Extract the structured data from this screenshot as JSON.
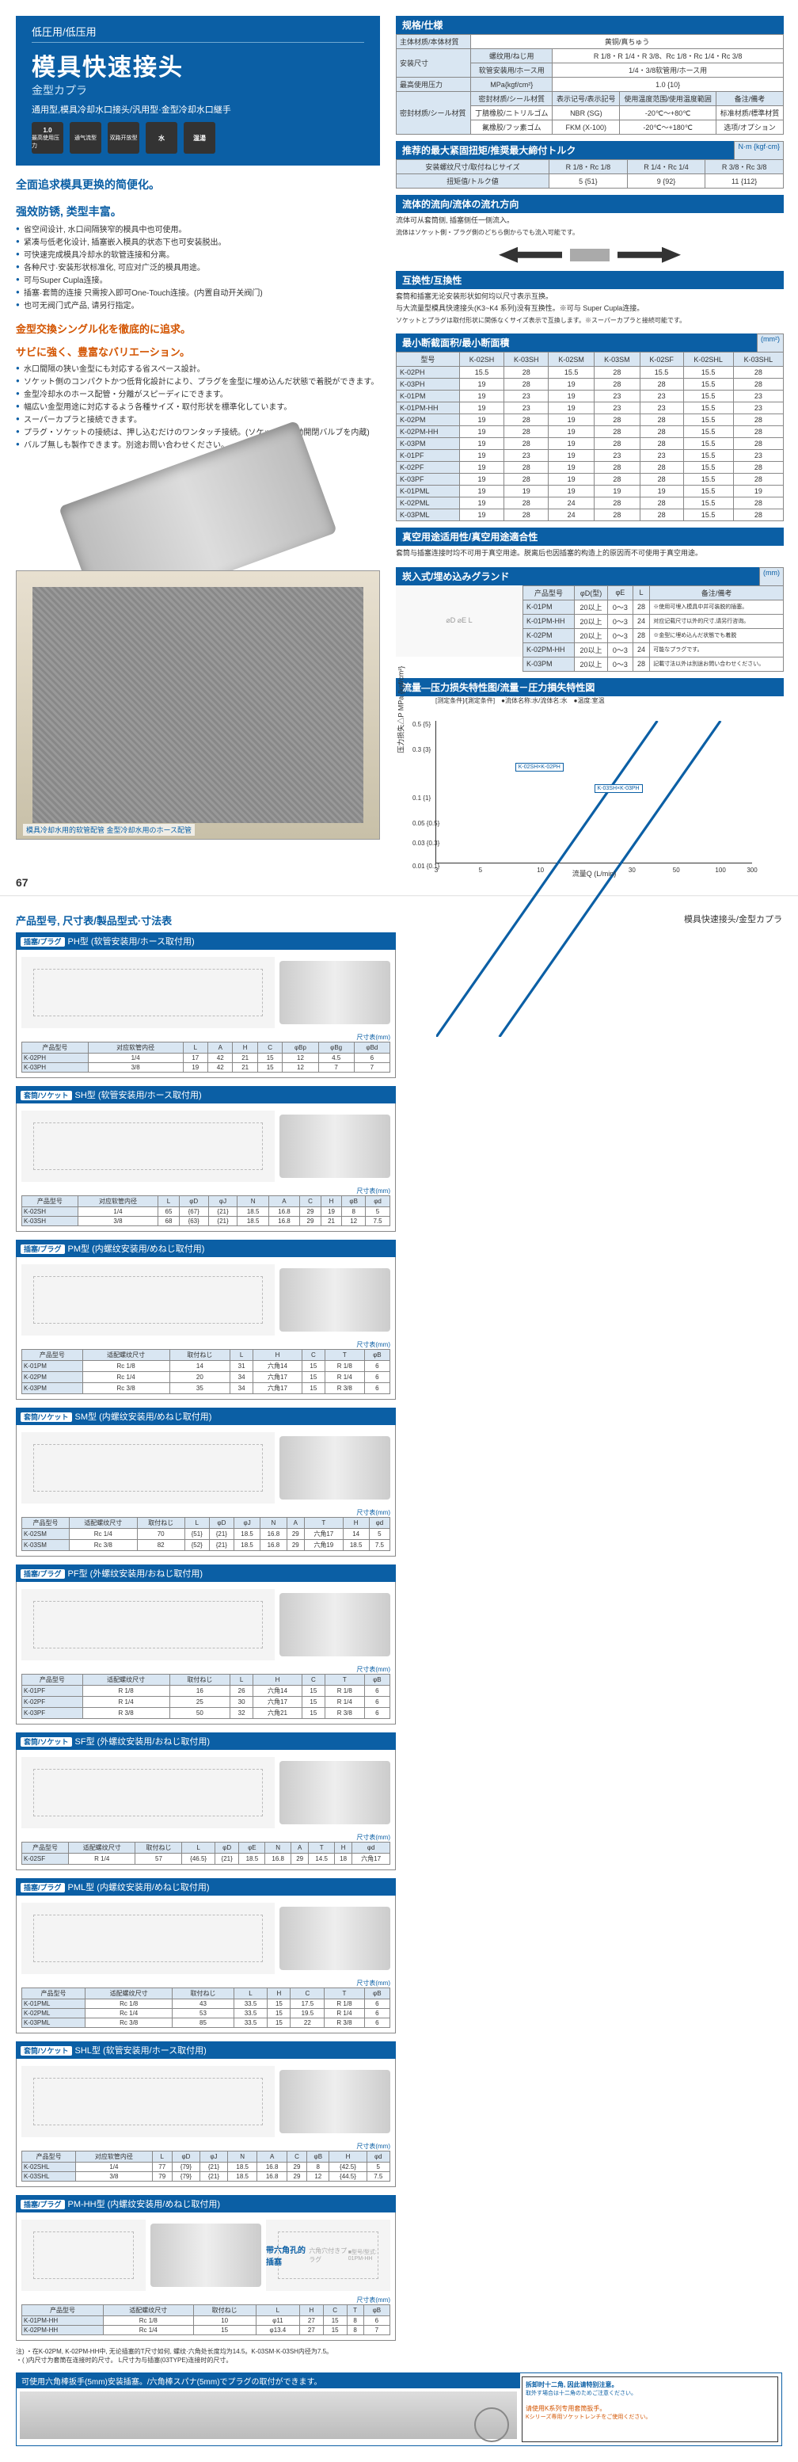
{
  "hero": {
    "sub": "低圧用/低压用",
    "title": "模具快速接头",
    "metal": "金型カプラ",
    "desc": "通用型,模具冷却水口接头/汎用型·金型冷却水口継手",
    "icon_labels": [
      "最高使用压力",
      "通气流型",
      "双路开放型",
      "适用流体",
      "适用流体"
    ],
    "icon_vals": [
      "1.0",
      "",
      "",
      "水",
      "温湯"
    ],
    "feat_title1": "全面追求模具更换的简便化。",
    "feat_title2": "强效防锈, 类型丰富。",
    "feats": [
      "省空间设计, 水口间隔狭窄的模具中也可使用。",
      "紧凑与低老化设计, 插塞嵌入模具的状态下也可安装脱出。",
      "可快速完成模具冷却水的软管连接和分离。",
      "各种尺寸·安装形状标准化, 可应对广泛的模具用途。",
      "可与Super Cupla连接。",
      "插塞·套筒的连接 只需按入即可One-Touch连接。(内置自动开关阀门)",
      "也可无阀门式产品, 请另行指定。"
    ],
    "orange1": "金型交換シングル化を徹底的に追求。",
    "orange2": "サビに強く、豊富なバリエーション。",
    "orange_feats": [
      "水口間隔の狭い金型にも対応する省スペース設計。",
      "ソケット側のコンパクトかつ低背化設計により、プラグを金型に埋め込んだ状態で着脱ができます。",
      "金型冷却水のホース配管・分離がスピーディにできます。",
      "幅広い金型用途に対応するよう各種サイズ・取付形状を標準化しています。",
      "スーパーカプラと接続できます。",
      "プラグ・ソケットの接続は、押し込むだけのワンタッチ接続。(ソケットは自動開閉バルブを内蔵)",
      "バルブ無しも製作できます。別途お問い合わせください。"
    ],
    "mach_caption": "模具冷却水用的软管配管 金型冷却水用のホース配管"
  },
  "pgnum": "67",
  "spec": {
    "hdr": "规格/仕様",
    "rows": [
      [
        "主体材质/本体材質",
        "黄铜/真ちゅう",
        "",
        "",
        ""
      ],
      [
        "安装尺寸",
        "螺纹用/ねじ用",
        "R 1/8・R 1/4・R 3/8、Rc 1/8・Rc 1/4・Rc 3/8",
        "",
        ""
      ],
      [
        "取付サイズ",
        "软管安装用/ホース用",
        "1/4・3/8软管用/ホース用",
        "",
        ""
      ],
      [
        "最高使用压力",
        "MPa{kgf/cm²}",
        "1.0 {10}",
        "",
        ""
      ]
    ],
    "seal_hdr": [
      "密封材质/シール材質",
      "密封材质/シール材質",
      "表示记号/表示記号",
      "使用温度范围/使用温度範囲",
      "备注/備考"
    ],
    "seal_rows": [
      [
        "丁腈橡胶/ニトリルゴム",
        "NBR (SG)",
        "-20℃～+80℃",
        "标准材质/標準材質"
      ],
      [
        "氟橡胶/フッ素ゴム",
        "FKM (X-100)",
        "-20℃～+180℃",
        "选项/オプション"
      ]
    ]
  },
  "torque": {
    "hdr": "推荐的最大紧固扭矩/推奨最大締付トルク",
    "unit": "N·m {kgf·cm}",
    "cols": [
      "安装螺纹尺寸/取付ねじサイズ",
      "R 1/8・Rc 1/8",
      "R 1/4・Rc 1/4",
      "R 3/8・Rc 3/8"
    ],
    "row": [
      "扭矩值/トルク値",
      "5 {51}",
      "9 {92}",
      "11 {112}"
    ]
  },
  "flowdir": {
    "hdr": "流体的流向/流体の流れ方向",
    "text": "流体可从套筒侧, 插塞侧任一侧流入。",
    "jp": "流体はソケット側・プラグ側のどちら側からでも流入可能です。"
  },
  "compat": {
    "hdr": "互换性/互換性",
    "text1": "套筒和插塞无论安装形状如何均以尺寸表示互换。",
    "text2": "与大流量型模具快速接头(K3~K4 系列)没有互换性。※可与 Super Cupla连接。",
    "jp": "ソケットとプラグは取付形状に関係なくサイズ表示で互換します。※スーパーカプラと接続可能です。"
  },
  "area": {
    "hdr": "最小断截面积/最小断面積",
    "unit": "(mm²)",
    "cols": [
      "型号",
      "K-02SH",
      "K-03SH",
      "K-02SM",
      "K-03SM",
      "K-02SF",
      "K-02SHL",
      "K-03SHL"
    ],
    "rows": [
      [
        "K-02PH",
        "15.5",
        "28",
        "15.5",
        "28",
        "15.5",
        "15.5",
        "28"
      ],
      [
        "K-03PH",
        "19",
        "28",
        "19",
        "28",
        "28",
        "15.5",
        "28"
      ],
      [
        "K-01PM",
        "19",
        "23",
        "19",
        "23",
        "23",
        "15.5",
        "23"
      ],
      [
        "K-01PM-HH",
        "19",
        "23",
        "19",
        "23",
        "23",
        "15.5",
        "23"
      ],
      [
        "K-02PM",
        "19",
        "28",
        "19",
        "28",
        "28",
        "15.5",
        "28"
      ],
      [
        "K-02PM-HH",
        "19",
        "28",
        "19",
        "28",
        "28",
        "15.5",
        "28"
      ],
      [
        "K-03PM",
        "19",
        "28",
        "19",
        "28",
        "28",
        "15.5",
        "28"
      ],
      [
        "K-01PF",
        "19",
        "23",
        "19",
        "23",
        "23",
        "15.5",
        "23"
      ],
      [
        "K-02PF",
        "19",
        "28",
        "19",
        "28",
        "28",
        "15.5",
        "28"
      ],
      [
        "K-03PF",
        "19",
        "28",
        "19",
        "28",
        "28",
        "15.5",
        "28"
      ],
      [
        "K-01PML",
        "19",
        "19",
        "19",
        "19",
        "19",
        "15.5",
        "19"
      ],
      [
        "K-02PML",
        "19",
        "28",
        "24",
        "28",
        "28",
        "15.5",
        "28"
      ],
      [
        "K-03PML",
        "19",
        "28",
        "24",
        "28",
        "28",
        "15.5",
        "28"
      ]
    ]
  },
  "vacuum": {
    "hdr": "真空用途适用性/真空用途適合性",
    "text": "套筒与插塞连接时均不可用于真空用途。脱离后也因插塞的构造上的原因而不可使用于真空用途。"
  },
  "embed": {
    "hdr": "崁入式/埋め込みグランド",
    "unit": "(mm)",
    "cols": [
      "产品型号",
      "φD(型)",
      "φE",
      "L",
      "备注/備考"
    ],
    "rows": [
      [
        "K-01PM",
        "20以上",
        "0～3",
        "28",
        "※使用可埋入模具中并可装脱的插塞。"
      ],
      [
        "K-01PM-HH",
        "20以上",
        "0～3",
        "24",
        "对应记载尺寸以外的尺寸,请另行咨询。"
      ],
      [
        "K-02PM",
        "20以上",
        "0～3",
        "28",
        "※金型に埋め込んだ状態でも着脱"
      ],
      [
        "K-02PM-HH",
        "20以上",
        "0～3",
        "24",
        "可能なプラグです。"
      ],
      [
        "K-03PM",
        "20以上",
        "0～3",
        "28",
        "記載寸法以外は別途お問い合わせください。"
      ]
    ]
  },
  "chart": {
    "hdr": "流量—压力损失特性图/流量－圧力損失特性図",
    "cond": "[测定条件]/[測定条件]　●流体名称:水/流体名:水　●温度:室温",
    "ylabel": "压力损失△P MPa {kgf/cm²}",
    "xlabel": "流量Q (L/min)",
    "yticks": [
      "0.5 {5}",
      "0.3 {3}",
      "0.1 {1}",
      "0.05 {0.5}",
      "0.03 {0.3}",
      "0.01 {0.1}"
    ],
    "ytick_pos": [
      0,
      18,
      52,
      70,
      84,
      100
    ],
    "xticks": [
      "3",
      "5",
      "10",
      "30",
      "50",
      "100",
      "300"
    ],
    "xtick_pos": [
      0,
      14,
      33,
      62,
      76,
      90,
      100
    ],
    "series1": "K-02SH×K-02PH",
    "series2": "K-03SH×K-03PH",
    "line_color": "#0b5fa5"
  },
  "p2": {
    "title": "产品型号, 尺寸表/製品型式·寸法表",
    "right": "模具快速接头/金型カプラ",
    "cards": [
      {
        "tag": "插塞/プラグ",
        "name": "PH型 (软管安装用/ホース取付用)",
        "dim_hdr": "尺寸表(mm)",
        "cols": [
          "产品型号",
          "对应软管内径",
          "L",
          "A",
          "H",
          "C",
          "φBp",
          "φBg",
          "φBd"
        ],
        "rows": [
          [
            "K-02PH",
            "1/4",
            "17",
            "42",
            "21",
            "15",
            "12",
            "4.5",
            "6"
          ],
          [
            "K-03PH",
            "3/8",
            "19",
            "42",
            "21",
            "15",
            "12",
            "7",
            "7"
          ]
        ]
      },
      {
        "tag": "套筒/ソケット",
        "name": "SH型 (软管安装用/ホース取付用)",
        "dim_hdr": "尺寸表(mm)",
        "cols": [
          "产品型号",
          "对应软管内径",
          "L",
          "φD",
          "φJ",
          "N",
          "A",
          "C",
          "H",
          "φB",
          "φd"
        ],
        "rows": [
          [
            "K-02SH",
            "1/4",
            "65",
            "{67}",
            "{21}",
            "18.5",
            "16.8",
            "29",
            "19",
            "8",
            "5"
          ],
          [
            "K-03SH",
            "3/8",
            "68",
            "{63}",
            "{21}",
            "18.5",
            "16.8",
            "29",
            "21",
            "12",
            "7.5"
          ]
        ]
      },
      {
        "tag": "插塞/プラグ",
        "name": "PM型 (内螺纹安装用/めねじ取付用)",
        "dim_hdr": "尺寸表(mm)",
        "cols": [
          "产品型号",
          "适配螺纹尺寸",
          "取付ねじ",
          "L",
          "H",
          "C",
          "T",
          "φB"
        ],
        "rows": [
          [
            "K-01PM",
            "Rc 1/8",
            "14",
            "31",
            "六角14",
            "15",
            "R 1/8",
            "6"
          ],
          [
            "K-02PM",
            "Rc 1/4",
            "20",
            "34",
            "六角17",
            "15",
            "R 1/4",
            "6"
          ],
          [
            "K-03PM",
            "Rc 3/8",
            "35",
            "34",
            "六角17",
            "15",
            "R 3/8",
            "6"
          ]
        ]
      },
      {
        "tag": "套筒/ソケット",
        "name": "SM型 (内螺纹安装用/めねじ取付用)",
        "dim_hdr": "尺寸表(mm)",
        "cols": [
          "产品型号",
          "适配螺纹尺寸",
          "取付ねじ",
          "L",
          "φD",
          "φJ",
          "N",
          "A",
          "T",
          "H",
          "φd"
        ],
        "rows": [
          [
            "K-02SM",
            "Rc 1/4",
            "70",
            "{51}",
            "{21}",
            "18.5",
            "16.8",
            "29",
            "六角17",
            "14",
            "5"
          ],
          [
            "K-03SM",
            "Rc 3/8",
            "82",
            "{52}",
            "{21}",
            "18.5",
            "16.8",
            "29",
            "六角19",
            "18.5",
            "7.5"
          ]
        ]
      },
      {
        "tag": "插塞/プラグ",
        "name": "PF型 (外螺纹安装用/おねじ取付用)",
        "dim_hdr": "尺寸表(mm)",
        "cols": [
          "产品型号",
          "适配螺纹尺寸",
          "取付ねじ",
          "L",
          "H",
          "C",
          "T",
          "φB"
        ],
        "rows": [
          [
            "K-01PF",
            "R 1/8",
            "16",
            "26",
            "六角14",
            "15",
            "R 1/8",
            "6"
          ],
          [
            "K-02PF",
            "R 1/4",
            "25",
            "30",
            "六角17",
            "15",
            "R 1/4",
            "6"
          ],
          [
            "K-03PF",
            "R 3/8",
            "50",
            "32",
            "六角21",
            "15",
            "R 3/8",
            "6"
          ]
        ]
      },
      {
        "tag": "套筒/ソケット",
        "name": "SF型 (外螺纹安装用/おねじ取付用)",
        "dim_hdr": "尺寸表(mm)",
        "cols": [
          "产品型号",
          "适配螺纹尺寸",
          "取付ねじ",
          "L",
          "φD",
          "φE",
          "N",
          "A",
          "T",
          "H",
          "φd"
        ],
        "rows": [
          [
            "K-02SF",
            "R 1/4",
            "57",
            "{46.5}",
            "{21}",
            "18.5",
            "16.8",
            "29",
            "14.5",
            "18",
            "六角17"
          ]
        ]
      },
      {
        "tag": "插塞/プラグ",
        "name": "PML型 (内螺纹安装用/めねじ取付用)",
        "dim_hdr": "尺寸表(mm)",
        "cols": [
          "产品型号",
          "适配螺纹尺寸",
          "取付ねじ",
          "L",
          "H",
          "C",
          "T",
          "φB"
        ],
        "rows": [
          [
            "K-01PML",
            "Rc 1/8",
            "43",
            "33.5",
            "15",
            "17.5",
            "R 1/8",
            "6"
          ],
          [
            "K-02PML",
            "Rc 1/4",
            "53",
            "33.5",
            "15",
            "19.5",
            "R 1/4",
            "6"
          ],
          [
            "K-03PML",
            "Rc 3/8",
            "85",
            "33.5",
            "15",
            "22",
            "R 3/8",
            "6"
          ]
        ]
      },
      {
        "tag": "套筒/ソケット",
        "name": "SHL型 (软管安装用/ホース取付用)",
        "dim_hdr": "尺寸表(mm)",
        "cols": [
          "产品型号",
          "对应软管内径",
          "L",
          "φD",
          "φJ",
          "N",
          "A",
          "C",
          "φB",
          "H",
          "φd"
        ],
        "rows": [
          [
            "K-02SHL",
            "1/4",
            "77",
            "{79}",
            "{21}",
            "18.5",
            "16.8",
            "29",
            "8",
            "{42.5}",
            "5"
          ],
          [
            "K-03SHL",
            "3/8",
            "79",
            "{79}",
            "{21}",
            "18.5",
            "16.8",
            "29",
            "12",
            "{44.5}",
            "7.5"
          ]
        ]
      },
      {
        "tag": "插塞/プラグ",
        "name": "PM-HH型 (内螺纹安装用/めねじ取付用)",
        "dim_hdr": "尺寸表(mm)",
        "cols": [
          "产品型号",
          "适配螺纹尺寸",
          "取付ねじ",
          "L",
          "H",
          "C",
          "T",
          "φB"
        ],
        "rows": [
          [
            "K-01PM-HH",
            "Rc 1/8",
            "10",
            "φ11",
            "27",
            "15",
            "8",
            "6"
          ],
          [
            "K-02PM-HH",
            "Rc 1/4",
            "15",
            "φ13.4",
            "27",
            "15",
            "8",
            "7"
          ]
        ],
        "extra_title": "带六角孔的插塞",
        "extra_jp": "六角穴付きプラグ",
        "extra_note": "■型号/型式: 01PM-HH"
      }
    ],
    "endnote": "注)  ・在K-02PM, K-02PM-HH中, 无论插塞的T尺寸如何, 螺纹·六角处长度均为14.5。K-03SM·K-03SH内径为7.5。\n      ・( )内尺寸为套筒在连接时的尺寸。      L尺寸为与插塞(03TYPE)连接时的尺寸。",
    "wrench": {
      "hdr": "可使用六角棒扳手(5mm)安装插塞。/六角棒スパナ(5mm)でプラグの取付ができます。",
      "right_title": "拆卸时十二角, 因此请特别注意。",
      "right_text": "取外す場合は十二角のためご注意ください。",
      "right_sub": "请使用K系列专用套筒扳手。",
      "right_jp": "Kシリーズ専用ソケットレンチをご使用ください。"
    }
  }
}
